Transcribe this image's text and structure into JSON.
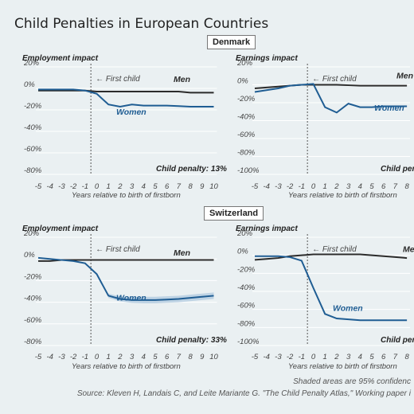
{
  "page_title": "Child Penalties in European Countries",
  "countries": [
    "Denmark",
    "Switzerland"
  ],
  "footnote": "Shaded areas are 95% confidenc",
  "source": "Source: Kleven H, Landais C, and Leite Mariante G. \"The Child Penalty Atlas,\" Working paper i",
  "colors": {
    "men": "#2b2b2b",
    "women": "#1f5d93",
    "band": "#b9cfe2",
    "grid": "#ffffff",
    "bg": "#eaf0f2"
  },
  "chart_data": [
    {
      "type": "line",
      "panel": "Denmark",
      "title": "Employment impact",
      "xlabel": "Years relative to birth of firstborn",
      "ylim": [
        -80,
        20
      ],
      "yticks": [
        20,
        0,
        -20,
        -40,
        -60,
        -80
      ],
      "x": [
        -5,
        -4,
        -3,
        -2,
        -1,
        0,
        1,
        2,
        3,
        4,
        5,
        6,
        7,
        8,
        9,
        10
      ],
      "first_child_label": "First child",
      "penalty_label": "Child penalty: 13%",
      "series": [
        {
          "name": "Men",
          "values": [
            -2,
            -2,
            -2,
            -2,
            -2,
            -3,
            -3,
            -3,
            -3,
            -3,
            -3,
            -3,
            -3,
            -4,
            -4,
            -4
          ]
        },
        {
          "name": "Women",
          "values": [
            -1,
            -1,
            -1,
            -1,
            -2,
            -5,
            -15,
            -17,
            -15,
            -16,
            -16,
            -16,
            -16.5,
            -17,
            -17,
            -17
          ]
        }
      ]
    },
    {
      "type": "line",
      "panel": "Denmark",
      "title": "Earnings impact",
      "xlabel": "Years relative to birth of firstborn",
      "ylim": [
        -100,
        20
      ],
      "yticks": [
        20,
        0,
        -20,
        -40,
        -60,
        -80,
        -100
      ],
      "x": [
        -5,
        -4,
        -3,
        -2,
        -1,
        0,
        1,
        2,
        3,
        4,
        5,
        6,
        7,
        8
      ],
      "first_child_label": "First child",
      "penalty_label": "Child pen",
      "series": [
        {
          "name": "Men",
          "values": [
            -4,
            -3,
            -2,
            -1,
            0,
            0,
            0,
            0,
            -0.5,
            -1,
            -1,
            -1,
            -1,
            -1
          ]
        },
        {
          "name": "Women",
          "values": [
            -8,
            -6,
            -4,
            -1,
            0,
            1,
            -25,
            -31,
            -21,
            -25,
            -25,
            -24,
            -24,
            -24
          ]
        }
      ]
    },
    {
      "type": "line",
      "panel": "Switzerland",
      "title": "Employment impact",
      "xlabel": "Years relative to birth of firstborn",
      "ylim": [
        -80,
        20
      ],
      "yticks": [
        20,
        0,
        -20,
        -40,
        -60,
        -80
      ],
      "x": [
        -5,
        -4,
        -3,
        -2,
        -1,
        0,
        1,
        2,
        3,
        4,
        5,
        6,
        7,
        8,
        9,
        10
      ],
      "first_child_label": "First child",
      "penalty_label": "Child penalty: 33%",
      "series": [
        {
          "name": "Men",
          "values": [
            -2,
            -2,
            -1,
            -1,
            -1,
            -1,
            -1,
            -1,
            -1,
            -1,
            -1,
            -1,
            -1,
            -1,
            -1,
            -1
          ]
        },
        {
          "name": "Women",
          "values": [
            1,
            0,
            -1,
            -2,
            -4,
            -14,
            -34,
            -37,
            -38,
            -38,
            -38,
            -37.5,
            -37,
            -36,
            -35,
            -34
          ]
        }
      ]
    },
    {
      "type": "line",
      "panel": "Switzerland",
      "title": "Earnings impact",
      "xlabel": "Years relative to birth of firstborn",
      "ylim": [
        -100,
        20
      ],
      "yticks": [
        20,
        0,
        -20,
        -40,
        -60,
        -80,
        -100
      ],
      "x": [
        -5,
        -4,
        -3,
        -2,
        -1,
        0,
        1,
        2,
        3,
        4,
        5,
        6,
        7,
        8
      ],
      "first_child_label": "First child",
      "penalty_label": "Child pen",
      "series": [
        {
          "name": "Men",
          "values": [
            -5,
            -4,
            -3,
            -1,
            0,
            1,
            1,
            1,
            1,
            1,
            0,
            -1,
            -2,
            -3
          ]
        },
        {
          "name": "Women",
          "values": [
            -1,
            -1,
            -1,
            -2,
            -6,
            -36,
            -65,
            -70,
            -71,
            -72,
            -72,
            -72,
            -72,
            -72
          ]
        }
      ]
    }
  ]
}
